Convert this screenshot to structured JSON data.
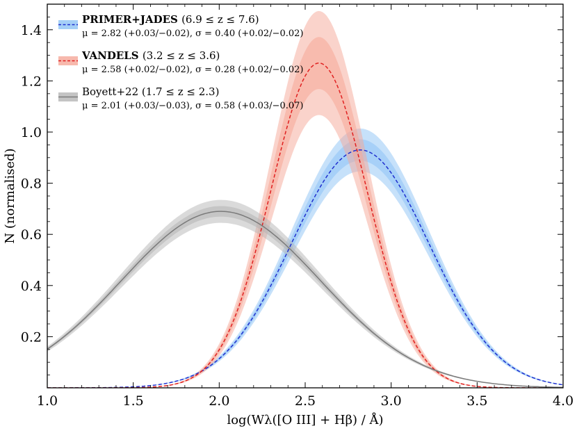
{
  "chart_data": {
    "type": "line",
    "title": "",
    "xlabel": "log(Wλ([O III] + Hβ) / Å)",
    "ylabel": "N (normalised)",
    "xlim": [
      1.0,
      4.0
    ],
    "ylim": [
      0.0,
      1.5
    ],
    "xticks": [
      "1.0",
      "1.5",
      "2.0",
      "2.5",
      "3.0",
      "3.5",
      "4.0"
    ],
    "yticks": [
      "0.2",
      "0.4",
      "0.6",
      "0.8",
      "1.0",
      "1.2",
      "1.4"
    ],
    "grid": false,
    "legend_position": "top-left",
    "series": [
      {
        "name": "PRIMER+JADES",
        "name_bold": true,
        "range_label": "(6.9 ≤ z ≤ 7.6)",
        "stats_label": "μ = 2.82 (+0.03/−0.02), σ = 0.40 (+0.02/−0.02)",
        "color": "#1f2fcf",
        "band_color": "#8ec3f5",
        "line_style": "dashed",
        "mu": 2.82,
        "sigma": 0.4,
        "peak": 0.93,
        "band_inner": 0.045,
        "band_outer": 0.09,
        "x": [
          1.0,
          1.5,
          2.0,
          2.25,
          2.5,
          2.75,
          2.9,
          3.0,
          3.25,
          3.5,
          3.75,
          4.0
        ],
        "y": [
          0.01,
          0.05,
          0.17,
          0.31,
          0.55,
          0.83,
          0.93,
          0.91,
          0.55,
          0.13,
          0.02,
          0.0
        ]
      },
      {
        "name": "VANDELS",
        "name_bold": true,
        "range_label": "(3.2 ≤ z ≤ 3.6)",
        "stats_label": "μ = 2.58 (+0.02/−0.02), σ = 0.28 (+0.02/−0.02)",
        "color": "#e02020",
        "band_color": "#f5a898",
        "line_style": "dashed",
        "mu": 2.58,
        "sigma": 0.28,
        "peak": 1.27,
        "band_inner": 0.08,
        "band_outer": 0.16,
        "x": [
          1.0,
          1.5,
          1.75,
          2.0,
          2.25,
          2.5,
          2.6,
          2.75,
          3.0,
          3.25,
          3.5,
          4.0
        ],
        "y": [
          0.0,
          0.02,
          0.05,
          0.18,
          0.62,
          1.17,
          1.27,
          1.09,
          0.38,
          0.05,
          0.01,
          0.0
        ]
      },
      {
        "name": "Boyett+22",
        "name_bold": false,
        "range_label": "(1.7 ≤ z ≤ 2.3)",
        "stats_label": "μ = 2.01 (+0.03/−0.03), σ = 0.58 (+0.03/−0.07)",
        "color": "#7a7a7a",
        "band_color": "#b5b5b5",
        "line_style": "solid",
        "mu": 2.01,
        "sigma": 0.58,
        "peak": 0.69,
        "band_inner": 0.03,
        "band_outer": 0.065,
        "x": [
          1.0,
          1.25,
          1.5,
          1.75,
          2.0,
          2.25,
          2.5,
          2.75,
          3.0,
          3.25,
          3.5,
          4.0
        ],
        "y": [
          0.15,
          0.31,
          0.49,
          0.64,
          0.69,
          0.64,
          0.48,
          0.29,
          0.13,
          0.05,
          0.02,
          0.0
        ]
      }
    ]
  }
}
